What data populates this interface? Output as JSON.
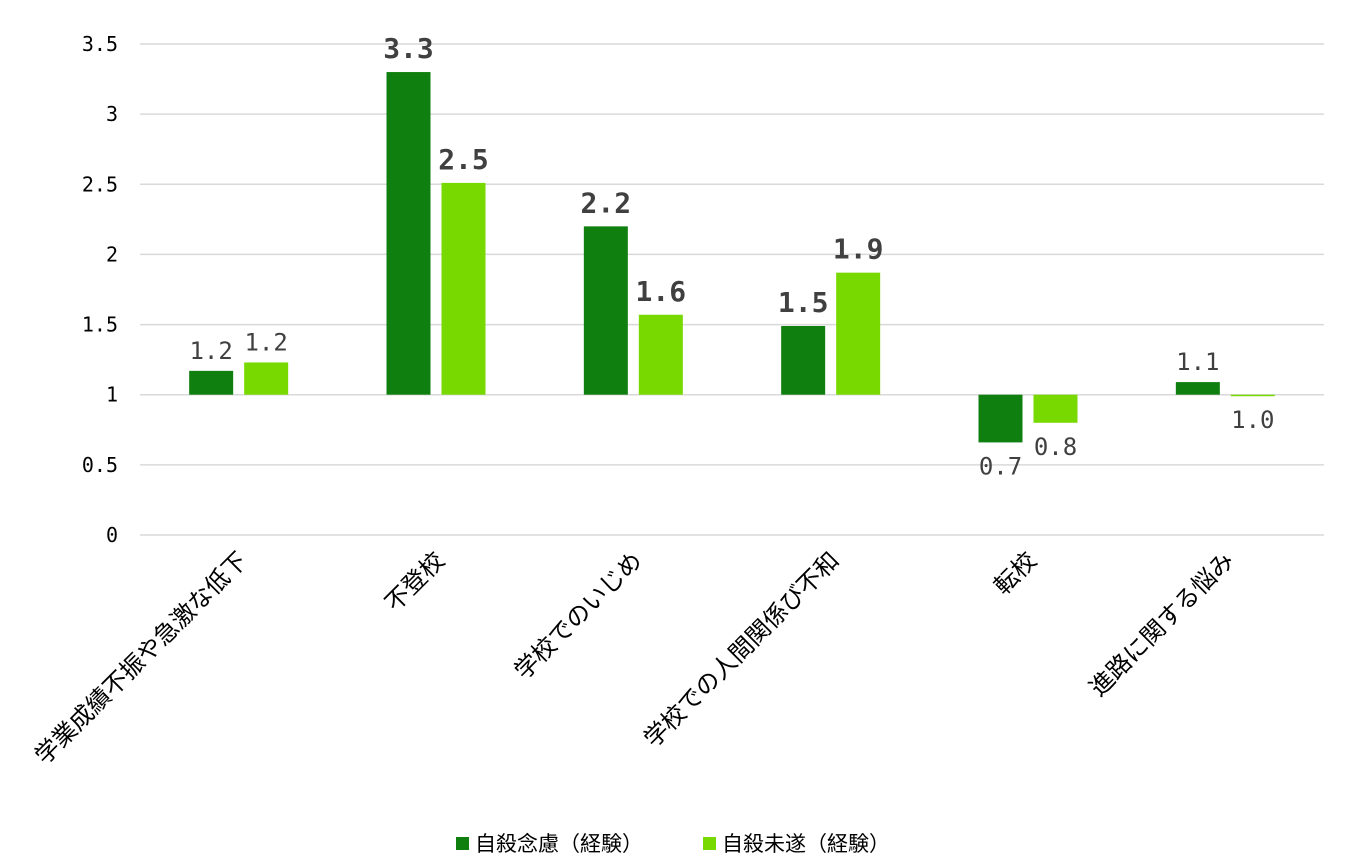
{
  "chart_data": {
    "type": "bar",
    "categories": [
      "学業成績不振や急激な低下",
      "不登校",
      "学校でのいじめ",
      "学校での人間関係び不和",
      "転校",
      "進路に関する悩み"
    ],
    "series": [
      {
        "name": "自殺念慮（経験）",
        "color": "#0f7f0f",
        "values": [
          1.17,
          3.3,
          2.2,
          1.49,
          0.66,
          1.09
        ],
        "labels": [
          "1.2",
          "3.3",
          "2.2",
          "1.5",
          "0.7",
          "1.1"
        ]
      },
      {
        "name": "自殺未遂（経験）",
        "color": "#77d900",
        "values": [
          1.23,
          2.51,
          1.57,
          1.87,
          0.8,
          0.99
        ],
        "labels": [
          "1.2",
          "2.5",
          "1.6",
          "1.9",
          "0.8",
          "1.0"
        ]
      }
    ],
    "baseline": 1,
    "ylim": [
      0,
      3.5
    ],
    "yticks": [
      "0",
      "0.5",
      "1",
      "1.5",
      "2",
      "2.5",
      "3",
      "3.5"
    ],
    "grid": true,
    "legend_position": "bottom"
  }
}
